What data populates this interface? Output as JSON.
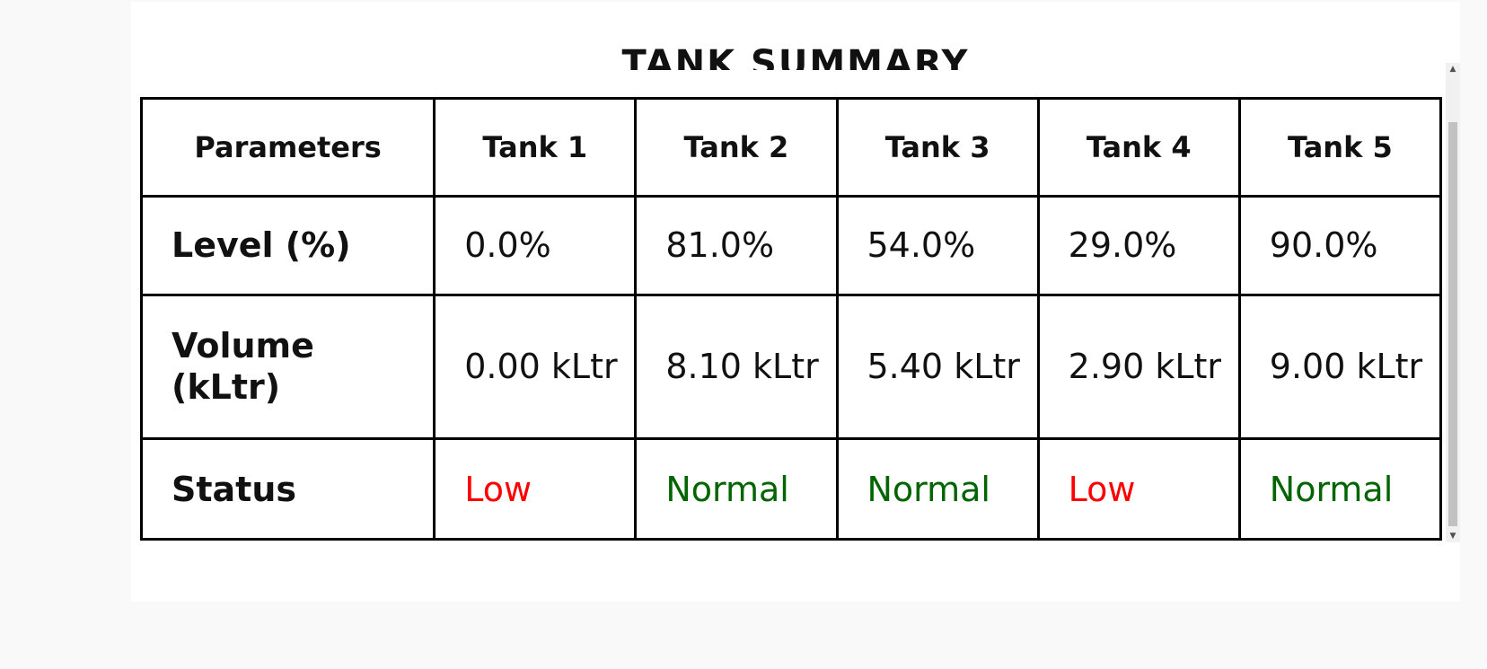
{
  "title": "TANK SUMMARY",
  "table": {
    "headers": [
      "Parameters",
      "Tank 1",
      "Tank 2",
      "Tank 3",
      "Tank 4",
      "Tank 5"
    ],
    "rows": [
      {
        "label": "Level (%)",
        "values": [
          "0.0%",
          "81.0%",
          "54.0%",
          "29.0%",
          "90.0%"
        ]
      },
      {
        "label": "Volume (kLtr)",
        "values": [
          "0.00 kLtr",
          "8.10 kLtr",
          "5.40 kLtr",
          "2.90 kLtr",
          "9.00 kLtr"
        ]
      },
      {
        "label": "Status",
        "values": [
          "Low",
          "Normal",
          "Normal",
          "Low",
          "Normal"
        ]
      }
    ]
  },
  "colors": {
    "status_low": "#ff0000",
    "status_normal": "#006400"
  },
  "scrollbar": {
    "up_icon": "▲",
    "down_icon": "▼"
  }
}
